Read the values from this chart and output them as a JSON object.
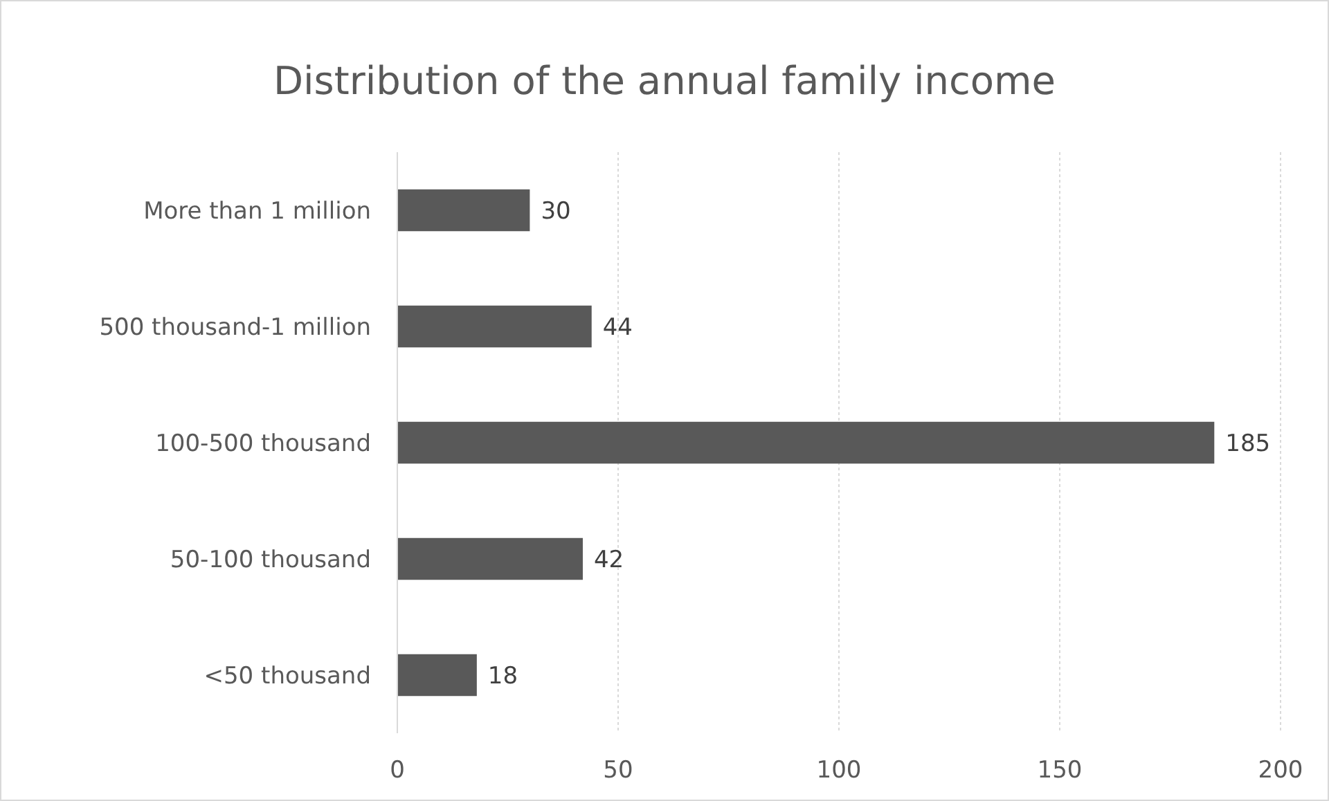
{
  "chart_data": {
    "type": "bar",
    "orientation": "horizontal",
    "title": "Distribution of the annual family income",
    "categories": [
      "More than 1 million",
      "500 thousand-1 million",
      "100-500 thousand",
      "50-100 thousand",
      "<50 thousand"
    ],
    "values": [
      30,
      44,
      185,
      42,
      18
    ],
    "color": "#595959",
    "xlim": [
      0,
      200
    ],
    "xticks": [
      0,
      50,
      100,
      150,
      200
    ],
    "grid": "x",
    "data_labels": true
  }
}
